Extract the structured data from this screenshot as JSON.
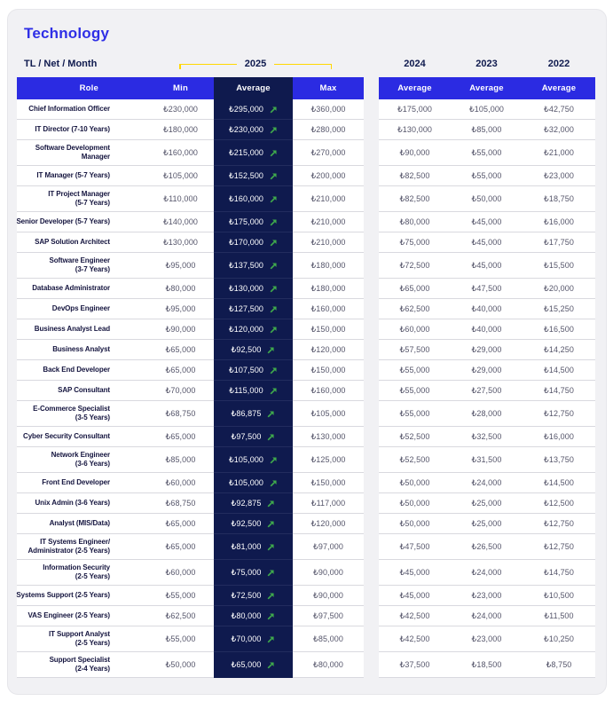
{
  "title": "Technology",
  "unit_label": "TL / Net / Month",
  "colors": {
    "header_blue": "#2b2be2",
    "dark_navy": "#0f1a4e",
    "bracket_yellow": "#ffd800",
    "trend_green": "#3fa94c"
  },
  "years": {
    "y2025": "2025",
    "y2024": "2024",
    "y2023": "2023",
    "y2022": "2022"
  },
  "table": {
    "headers": {
      "role": "Role",
      "min": "Min",
      "average_2025": "Average",
      "max": "Max",
      "average_2024": "Average",
      "average_2023": "Average",
      "average_2022": "Average"
    },
    "trend_icon": "up-right-arrow",
    "rows": [
      {
        "role": "Chief Information Officer",
        "min": "₺230,000",
        "avg_2025": "₺295,000",
        "max": "₺360,000",
        "avg_2024": "₺175,000",
        "avg_2023": "₺105,000",
        "avg_2022": "₺42,750"
      },
      {
        "role": "IT Director (7-10 Years)",
        "min": "₺180,000",
        "avg_2025": "₺230,000",
        "max": "₺280,000",
        "avg_2024": "₺130,000",
        "avg_2023": "₺85,000",
        "avg_2022": "₺32,000"
      },
      {
        "role": "Software Development\nManager",
        "min": "₺160,000",
        "avg_2025": "₺215,000",
        "max": "₺270,000",
        "avg_2024": "₺90,000",
        "avg_2023": "₺55,000",
        "avg_2022": "₺21,000"
      },
      {
        "role": "IT Manager (5-7 Years)",
        "min": "₺105,000",
        "avg_2025": "₺152,500",
        "max": "₺200,000",
        "avg_2024": "₺82,500",
        "avg_2023": "₺55,000",
        "avg_2022": "₺23,000"
      },
      {
        "role": "IT Project Manager\n(5-7 Years)",
        "min": "₺110,000",
        "avg_2025": "₺160,000",
        "max": "₺210,000",
        "avg_2024": "₺82,500",
        "avg_2023": "₺50,000",
        "avg_2022": "₺18,750"
      },
      {
        "role": "Senior Developer (5-7 Years)",
        "min": "₺140,000",
        "avg_2025": "₺175,000",
        "max": "₺210,000",
        "avg_2024": "₺80,000",
        "avg_2023": "₺45,000",
        "avg_2022": "₺16,000"
      },
      {
        "role": "SAP Solution Architect",
        "min": "₺130,000",
        "avg_2025": "₺170,000",
        "max": "₺210,000",
        "avg_2024": "₺75,000",
        "avg_2023": "₺45,000",
        "avg_2022": "₺17,750"
      },
      {
        "role": "Software Engineer\n(3-7 Years)",
        "min": "₺95,000",
        "avg_2025": "₺137,500",
        "max": "₺180,000",
        "avg_2024": "₺72,500",
        "avg_2023": "₺45,000",
        "avg_2022": "₺15,500"
      },
      {
        "role": "Database Administrator",
        "min": "₺80,000",
        "avg_2025": "₺130,000",
        "max": "₺180,000",
        "avg_2024": "₺65,000",
        "avg_2023": "₺47,500",
        "avg_2022": "₺20,000"
      },
      {
        "role": "DevOps Engineer",
        "min": "₺95,000",
        "avg_2025": "₺127,500",
        "max": "₺160,000",
        "avg_2024": "₺62,500",
        "avg_2023": "₺40,000",
        "avg_2022": "₺15,250"
      },
      {
        "role": "Business Analyst Lead",
        "min": "₺90,000",
        "avg_2025": "₺120,000",
        "max": "₺150,000",
        "avg_2024": "₺60,000",
        "avg_2023": "₺40,000",
        "avg_2022": "₺16,500"
      },
      {
        "role": "Business Analyst",
        "min": "₺65,000",
        "avg_2025": "₺92,500",
        "max": "₺120,000",
        "avg_2024": "₺57,500",
        "avg_2023": "₺29,000",
        "avg_2022": "₺14,250"
      },
      {
        "role": "Back End Developer",
        "min": "₺65,000",
        "avg_2025": "₺107,500",
        "max": "₺150,000",
        "avg_2024": "₺55,000",
        "avg_2023": "₺29,000",
        "avg_2022": "₺14,500"
      },
      {
        "role": "SAP Consultant",
        "min": "₺70,000",
        "avg_2025": "₺115,000",
        "max": "₺160,000",
        "avg_2024": "₺55,000",
        "avg_2023": "₺27,500",
        "avg_2022": "₺14,750"
      },
      {
        "role": "E-Commerce Specialist\n(3-5 Years)",
        "min": "₺68,750",
        "avg_2025": "₺86,875",
        "max": "₺105,000",
        "avg_2024": "₺55,000",
        "avg_2023": "₺28,000",
        "avg_2022": "₺12,750"
      },
      {
        "role": "Cyber Security Consultant",
        "min": "₺65,000",
        "avg_2025": "₺97,500",
        "max": "₺130,000",
        "avg_2024": "₺52,500",
        "avg_2023": "₺32,500",
        "avg_2022": "₺16,000"
      },
      {
        "role": "Network Engineer\n(3-6 Years)",
        "min": "₺85,000",
        "avg_2025": "₺105,000",
        "max": "₺125,000",
        "avg_2024": "₺52,500",
        "avg_2023": "₺31,500",
        "avg_2022": "₺13,750"
      },
      {
        "role": "Front End Developer",
        "min": "₺60,000",
        "avg_2025": "₺105,000",
        "max": "₺150,000",
        "avg_2024": "₺50,000",
        "avg_2023": "₺24,000",
        "avg_2022": "₺14,500"
      },
      {
        "role": "Unix Admin (3-6 Years)",
        "min": "₺68,750",
        "avg_2025": "₺92,875",
        "max": "₺117,000",
        "avg_2024": "₺50,000",
        "avg_2023": "₺25,000",
        "avg_2022": "₺12,500"
      },
      {
        "role": "Analyst (MIS/Data)",
        "min": "₺65,000",
        "avg_2025": "₺92,500",
        "max": "₺120,000",
        "avg_2024": "₺50,000",
        "avg_2023": "₺25,000",
        "avg_2022": "₺12,750"
      },
      {
        "role": "IT Systems Engineer/\nAdministrator (2-5 Years)",
        "min": "₺65,000",
        "avg_2025": "₺81,000",
        "max": "₺97,000",
        "avg_2024": "₺47,500",
        "avg_2023": "₺26,500",
        "avg_2022": "₺12,750"
      },
      {
        "role": "Information Security\n(2-5 Years)",
        "min": "₺60,000",
        "avg_2025": "₺75,000",
        "max": "₺90,000",
        "avg_2024": "₺45,000",
        "avg_2023": "₺24,000",
        "avg_2022": "₺14,750"
      },
      {
        "role": "Systems Support (2-5 Years)",
        "min": "₺55,000",
        "avg_2025": "₺72,500",
        "max": "₺90,000",
        "avg_2024": "₺45,000",
        "avg_2023": "₺23,000",
        "avg_2022": "₺10,500"
      },
      {
        "role": "VAS Engineer (2-5 Years)",
        "min": "₺62,500",
        "avg_2025": "₺80,000",
        "max": "₺97,500",
        "avg_2024": "₺42,500",
        "avg_2023": "₺24,000",
        "avg_2022": "₺11,500"
      },
      {
        "role": "IT Support Analyst\n(2-5 Years)",
        "min": "₺55,000",
        "avg_2025": "₺70,000",
        "max": "₺85,000",
        "avg_2024": "₺42,500",
        "avg_2023": "₺23,000",
        "avg_2022": "₺10,250"
      },
      {
        "role": "Support Specialist\n(2-4 Years)",
        "min": "₺50,000",
        "avg_2025": "₺65,000",
        "max": "₺80,000",
        "avg_2024": "₺37,500",
        "avg_2023": "₺18,500",
        "avg_2022": "₺8,750"
      }
    ]
  }
}
